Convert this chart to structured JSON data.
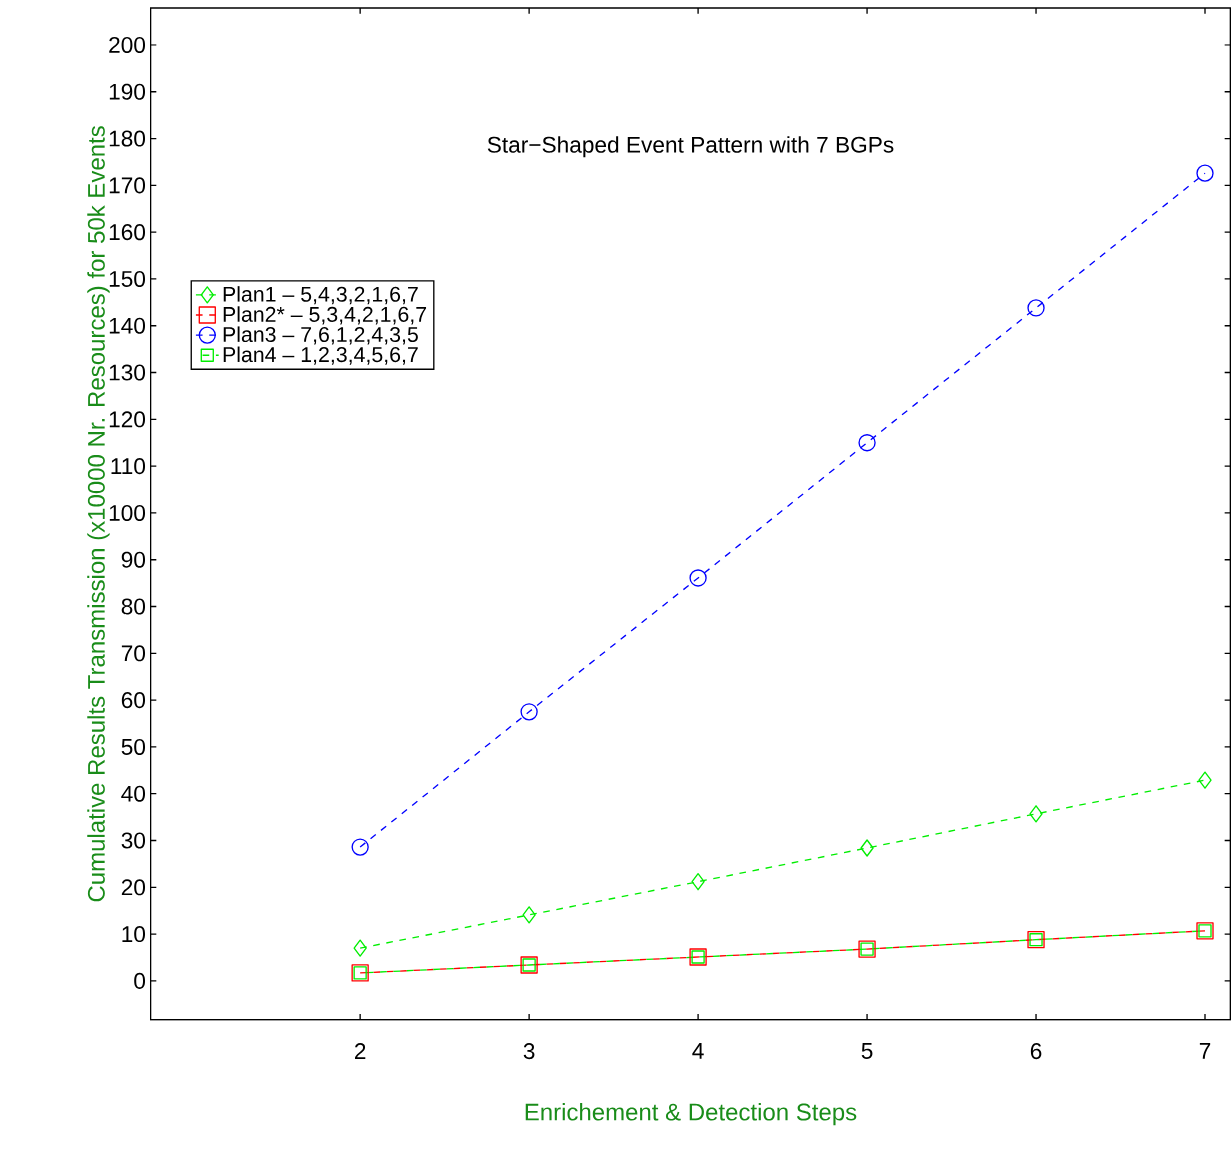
{
  "chart_data": {
    "type": "line",
    "title": "Star−Shaped Event Pattern with 7 BGPs",
    "xlabel": "Enrichement & Detection Steps",
    "ylabel": "Cumulative Results Transmission (x10000 Nr. Resources) for 50k Events",
    "x": [
      2,
      3,
      4,
      5,
      6,
      7
    ],
    "series": [
      {
        "name": "Plan1 – 5,4,3,2,1,6,7",
        "color": "#00ee00",
        "marker": "diamond",
        "values": [
          7.0,
          14.1,
          21.2,
          28.4,
          35.7,
          42.9
        ]
      },
      {
        "name": "Plan2* – 5,3,4,2,1,6,7",
        "color": "#ff0000",
        "marker": "square",
        "values": [
          1.7,
          3.4,
          5.1,
          6.8,
          8.8,
          10.7
        ]
      },
      {
        "name": "Plan3 – 7,6,1,2,4,3,5",
        "color": "#0000ff",
        "marker": "circle",
        "values": [
          28.6,
          57.5,
          86.1,
          115,
          143.8,
          172.6
        ]
      },
      {
        "name": "Plan4 – 1,2,3,4,5,6,7",
        "color": "#00ee00",
        "marker": "square",
        "values": [
          1.7,
          3.4,
          5.1,
          6.8,
          8.8,
          10.7
        ]
      }
    ],
    "xlim": [
      0.76,
      7.15
    ],
    "ylim": [
      -8.3,
      207.9
    ],
    "xticks": [
      2,
      3,
      4,
      5,
      6,
      7
    ],
    "yticks": [
      0,
      10,
      20,
      30,
      40,
      50,
      60,
      70,
      80,
      90,
      100,
      110,
      120,
      130,
      140,
      150,
      160,
      170,
      180,
      190,
      200
    ],
    "line_style": "dashed",
    "legend": "left",
    "grid": false
  }
}
